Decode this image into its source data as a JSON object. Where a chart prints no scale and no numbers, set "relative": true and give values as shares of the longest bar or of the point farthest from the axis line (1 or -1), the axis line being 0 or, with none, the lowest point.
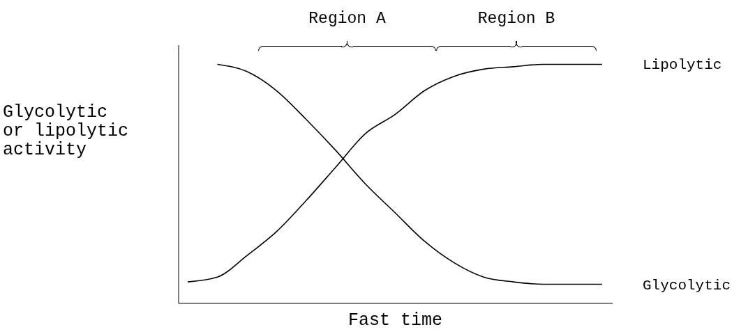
{
  "chart_data": {
    "type": "line",
    "relative": true,
    "xlabel": "Fast time",
    "ylabel": "Glycolytic or lipolytic activity",
    "annotations": [
      "Region A",
      "Region B"
    ],
    "categories": [
      null,
      null,
      null,
      null,
      null,
      null,
      null,
      null,
      null,
      null,
      null,
      null,
      null,
      null,
      null
    ],
    "marker": "none",
    "line_style": "solid",
    "grid": false,
    "legend": false,
    "series": [
      {
        "name": "Lipolytic",
        "color": "#000000",
        "values": [
          0.09,
          0.11,
          0.2,
          0.3,
          0.43,
          0.57,
          0.71,
          0.79,
          0.89,
          0.95,
          0.98,
          0.99,
          1,
          1,
          1
        ]
      },
      {
        "name": "Glycolytic",
        "color": "#000000",
        "values": [
          null,
          1,
          0.97,
          0.89,
          0.77,
          0.64,
          0.5,
          0.38,
          0.26,
          0.17,
          0.11,
          0.09,
          0.08,
          0.08,
          0.08
        ]
      }
    ]
  }
}
